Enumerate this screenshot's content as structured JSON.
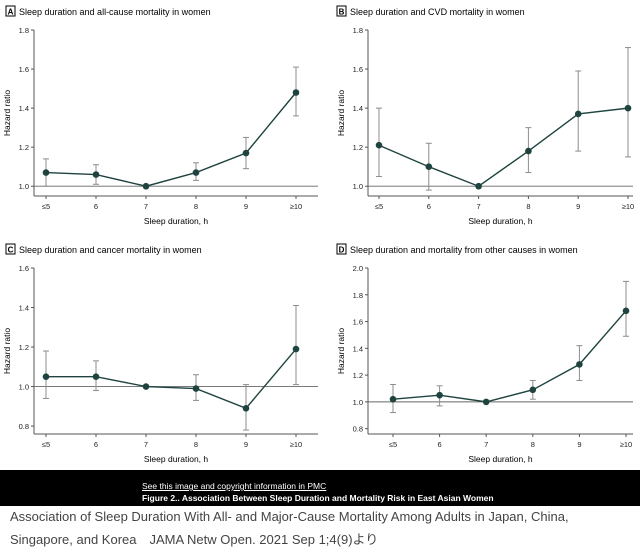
{
  "caption": {
    "link_text": "See this image and copyright information in PMC",
    "figure_title": "Figure 2.. Association Between Sleep Duration and Mortality Risk in East Asian Women",
    "citation": "Association of Sleep Duration With All- and Major-Cause Mortality Among Adults in Japan, China, Singapore, and Korea　JAMA Netw Open. 2021 Sep 1;4(9)より"
  },
  "colors": {
    "line": "#1f4440",
    "marker": "#1f4440",
    "error_bar": "#8c8c8c",
    "axis": "#555555",
    "reference_line": "#666666"
  },
  "chart_data": [
    {
      "type": "line",
      "panel_letter": "A",
      "title": "Sleep duration and all-cause mortality in women",
      "xlabel": "Sleep duration, h",
      "ylabel": "Hazard ratio",
      "categories": [
        "≤5",
        "6",
        "7",
        "8",
        "9",
        "≥10"
      ],
      "values": [
        1.07,
        1.06,
        1.0,
        1.07,
        1.17,
        1.48
      ],
      "ci_lower": [
        1.0,
        1.01,
        1.0,
        1.03,
        1.09,
        1.36
      ],
      "ci_upper": [
        1.14,
        1.11,
        1.0,
        1.12,
        1.25,
        1.61
      ],
      "ylim": [
        0.95,
        1.8
      ],
      "yticks": [
        "1.0",
        "1.2",
        "1.4",
        "1.6",
        "1.8"
      ],
      "reference_line": 1.0
    },
    {
      "type": "line",
      "panel_letter": "B",
      "title": "Sleep duration and CVD mortality in women",
      "xlabel": "Sleep duration, h",
      "ylabel": "Hazard ratio",
      "categories": [
        "≤5",
        "6",
        "7",
        "8",
        "9",
        "≥10"
      ],
      "values": [
        1.21,
        1.1,
        1.0,
        1.18,
        1.37,
        1.4
      ],
      "ci_lower": [
        1.05,
        0.98,
        1.0,
        1.07,
        1.18,
        1.15
      ],
      "ci_upper": [
        1.4,
        1.22,
        1.0,
        1.3,
        1.59,
        1.71
      ],
      "ylim": [
        0.95,
        1.8
      ],
      "yticks": [
        "1.0",
        "1.2",
        "1.4",
        "1.6",
        "1.8"
      ],
      "reference_line": 1.0
    },
    {
      "type": "line",
      "panel_letter": "C",
      "title": "Sleep duration and cancer mortality in women",
      "xlabel": "Sleep duration, h",
      "ylabel": "Hazard ratio",
      "categories": [
        "≤5",
        "6",
        "7",
        "8",
        "9",
        "≥10"
      ],
      "values": [
        1.05,
        1.05,
        1.0,
        0.99,
        0.89,
        1.19
      ],
      "ci_lower": [
        0.94,
        0.98,
        1.0,
        0.93,
        0.78,
        1.01
      ],
      "ci_upper": [
        1.18,
        1.13,
        1.0,
        1.06,
        1.01,
        1.41
      ],
      "ylim": [
        0.76,
        1.6
      ],
      "yticks": [
        "0.8",
        "1.0",
        "1.2",
        "1.4",
        "1.6"
      ],
      "reference_line": 1.0
    },
    {
      "type": "line",
      "panel_letter": "D",
      "title": "Sleep duration and mortality from other causes in women",
      "xlabel": "Sleep duration, h",
      "ylabel": "Hazard ratio",
      "categories": [
        "≤5",
        "6",
        "7",
        "8",
        "9",
        "≥10"
      ],
      "values": [
        1.02,
        1.05,
        1.0,
        1.09,
        1.28,
        1.68
      ],
      "ci_lower": [
        0.92,
        0.97,
        1.0,
        1.02,
        1.16,
        1.49
      ],
      "ci_upper": [
        1.13,
        1.12,
        1.0,
        1.16,
        1.42,
        1.9
      ],
      "ylim": [
        0.76,
        2.0
      ],
      "yticks": [
        "0.8",
        "1.0",
        "1.2",
        "1.4",
        "1.6",
        "1.8",
        "2.0"
      ],
      "reference_line": 1.0
    }
  ]
}
